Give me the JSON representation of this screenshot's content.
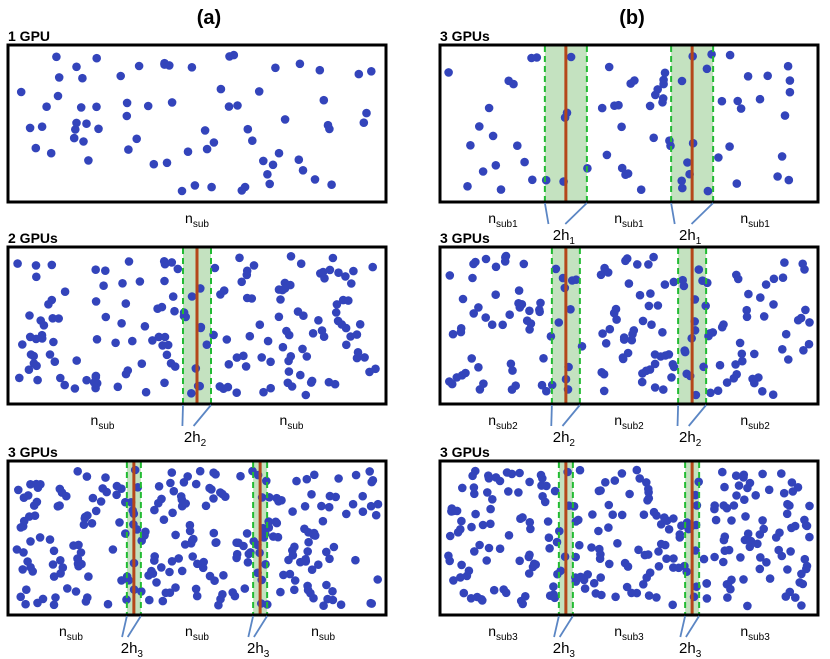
{
  "columns": [
    {
      "label": "(a)",
      "panels": [
        {
          "title": "1 GPU",
          "boundaries": [],
          "particle_count": 72,
          "sub_labels": [
            {
              "main": "n",
              "sub": "sub"
            }
          ],
          "h_labels": []
        },
        {
          "title": "2 GPUs",
          "boundaries": [
            0.5
          ],
          "particle_count": 170,
          "sub_labels": [
            {
              "main": "n",
              "sub": "sub"
            },
            {
              "main": "n",
              "sub": "sub"
            }
          ],
          "h_labels": [
            {
              "main": "2h",
              "sub": "2"
            }
          ]
        },
        {
          "title": "3 GPUs",
          "boundaries": [
            0.333,
            0.667
          ],
          "particle_count": 255,
          "sub_labels": [
            {
              "main": "n",
              "sub": "sub"
            },
            {
              "main": "n",
              "sub": "sub"
            },
            {
              "main": "n",
              "sub": "sub"
            }
          ],
          "h_labels": [
            {
              "main": "2h",
              "sub": "3"
            },
            {
              "main": "2h",
              "sub": "3"
            }
          ]
        }
      ]
    },
    {
      "label": "(b)",
      "panels": [
        {
          "title": "3 GPUs",
          "boundaries": [
            0.333,
            0.667
          ],
          "particle_count": 72,
          "sub_labels": [
            {
              "main": "n",
              "sub": "sub1"
            },
            {
              "main": "n",
              "sub": "sub1"
            },
            {
              "main": "n",
              "sub": "sub1"
            }
          ],
          "h_labels": [
            {
              "main": "2h",
              "sub": "1"
            },
            {
              "main": "2h",
              "sub": "1"
            }
          ]
        },
        {
          "title": "3 GPUs",
          "boundaries": [
            0.333,
            0.667
          ],
          "particle_count": 170,
          "sub_labels": [
            {
              "main": "n",
              "sub": "sub2"
            },
            {
              "main": "n",
              "sub": "sub2"
            },
            {
              "main": "n",
              "sub": "sub2"
            }
          ],
          "h_labels": [
            {
              "main": "2h",
              "sub": "2"
            },
            {
              "main": "2h",
              "sub": "2"
            }
          ]
        },
        {
          "title": "3 GPUs",
          "boundaries": [
            0.333,
            0.667
          ],
          "particle_count": 255,
          "sub_labels": [
            {
              "main": "n",
              "sub": "sub3"
            },
            {
              "main": "n",
              "sub": "sub3"
            },
            {
              "main": "n",
              "sub": "sub3"
            }
          ],
          "h_labels": [
            {
              "main": "2h",
              "sub": "3"
            },
            {
              "main": "2h",
              "sub": "3"
            }
          ]
        }
      ]
    }
  ],
  "colors": {
    "particle": "#3344bb",
    "boundary_line": "#b5471a",
    "ghost_zone_dash": "#22bb33",
    "ghost_zone_fill": "#c4e2c0",
    "frame": "#000000",
    "text": "#000000",
    "pointer_line": "#5b86c4"
  }
}
